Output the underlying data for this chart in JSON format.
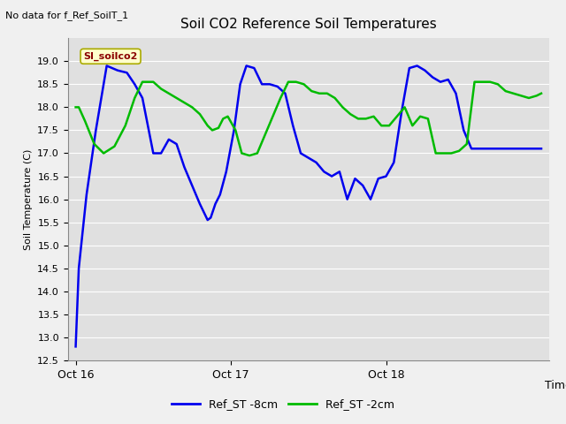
{
  "title": "Soil CO2 Reference Soil Temperatures",
  "no_data_label": "No data for f_Ref_SoilT_1",
  "ylabel": "Soil Temperature (C)",
  "xlabel": "Time",
  "annotation_label": "SI_soilco2",
  "ylim": [
    12.5,
    19.5
  ],
  "yticks": [
    12.5,
    13.0,
    13.5,
    14.0,
    14.5,
    15.0,
    15.5,
    16.0,
    16.5,
    17.0,
    17.5,
    18.0,
    18.5,
    19.0
  ],
  "xtick_positions": [
    0,
    1,
    2
  ],
  "xtick_labels": [
    "Oct 16",
    "Oct 17",
    "Oct 18"
  ],
  "legend_labels": [
    "Ref_ST -8cm",
    "Ref_ST -2cm"
  ],
  "blue_color": "#0000EE",
  "green_color": "#00BB00",
  "fig_bg_color": "#F0F0F0",
  "plot_bg_color": "#E0E0E0",
  "grid_color": "#FFFFFF",
  "blue_x": [
    0.0,
    0.02,
    0.07,
    0.13,
    0.2,
    0.27,
    0.33,
    0.38,
    0.43,
    0.5,
    0.55,
    0.6,
    0.65,
    0.7,
    0.75,
    0.8,
    0.85,
    0.87,
    0.9,
    0.93,
    0.97,
    1.02,
    1.06,
    1.1,
    1.15,
    1.2,
    1.25,
    1.3,
    1.35,
    1.4,
    1.45,
    1.5,
    1.55,
    1.6,
    1.65,
    1.7,
    1.75,
    1.8,
    1.85,
    1.9,
    1.95,
    2.0,
    2.05,
    2.1,
    2.15,
    2.2,
    2.25,
    2.3,
    2.35,
    2.4,
    2.45,
    2.5,
    2.55,
    2.6,
    2.65,
    2.7,
    2.75,
    2.8,
    2.85,
    2.9,
    2.95,
    3.0
  ],
  "blue_y": [
    12.8,
    14.5,
    16.1,
    17.5,
    18.9,
    18.8,
    18.75,
    18.5,
    18.2,
    17.0,
    17.0,
    17.3,
    17.2,
    16.7,
    16.3,
    15.9,
    15.55,
    15.6,
    15.9,
    16.1,
    16.6,
    17.5,
    18.5,
    18.9,
    18.85,
    18.5,
    18.5,
    18.45,
    18.3,
    17.6,
    17.0,
    16.9,
    16.8,
    16.6,
    16.5,
    16.6,
    16.0,
    16.45,
    16.3,
    16.0,
    16.45,
    16.5,
    16.8,
    17.9,
    18.85,
    18.9,
    18.8,
    18.65,
    18.55,
    18.6,
    18.3,
    17.5,
    17.1,
    17.1,
    17.1,
    17.1,
    17.1,
    17.1,
    17.1,
    17.1,
    17.1,
    17.1
  ],
  "green_x": [
    0.0,
    0.02,
    0.06,
    0.12,
    0.18,
    0.25,
    0.32,
    0.38,
    0.43,
    0.5,
    0.55,
    0.6,
    0.65,
    0.7,
    0.75,
    0.8,
    0.85,
    0.88,
    0.92,
    0.95,
    0.98,
    1.03,
    1.07,
    1.12,
    1.17,
    1.22,
    1.27,
    1.32,
    1.37,
    1.42,
    1.47,
    1.52,
    1.57,
    1.62,
    1.67,
    1.72,
    1.77,
    1.82,
    1.87,
    1.92,
    1.97,
    2.02,
    2.07,
    2.12,
    2.17,
    2.22,
    2.27,
    2.32,
    2.37,
    2.42,
    2.47,
    2.52,
    2.57,
    2.62,
    2.67,
    2.72,
    2.77,
    2.82,
    2.87,
    2.92,
    2.97,
    3.0
  ],
  "green_y": [
    18.0,
    18.0,
    17.7,
    17.2,
    17.0,
    17.15,
    17.6,
    18.2,
    18.55,
    18.55,
    18.4,
    18.3,
    18.2,
    18.1,
    18.0,
    17.85,
    17.6,
    17.5,
    17.55,
    17.75,
    17.8,
    17.5,
    17.0,
    16.95,
    17.0,
    17.4,
    17.8,
    18.2,
    18.55,
    18.55,
    18.5,
    18.35,
    18.3,
    18.3,
    18.2,
    18.0,
    17.85,
    17.75,
    17.75,
    17.8,
    17.6,
    17.6,
    17.8,
    18.0,
    17.6,
    17.8,
    17.75,
    17.0,
    17.0,
    17.0,
    17.05,
    17.2,
    18.55,
    18.55,
    18.55,
    18.5,
    18.35,
    18.3,
    18.25,
    18.2,
    18.25,
    18.3
  ]
}
